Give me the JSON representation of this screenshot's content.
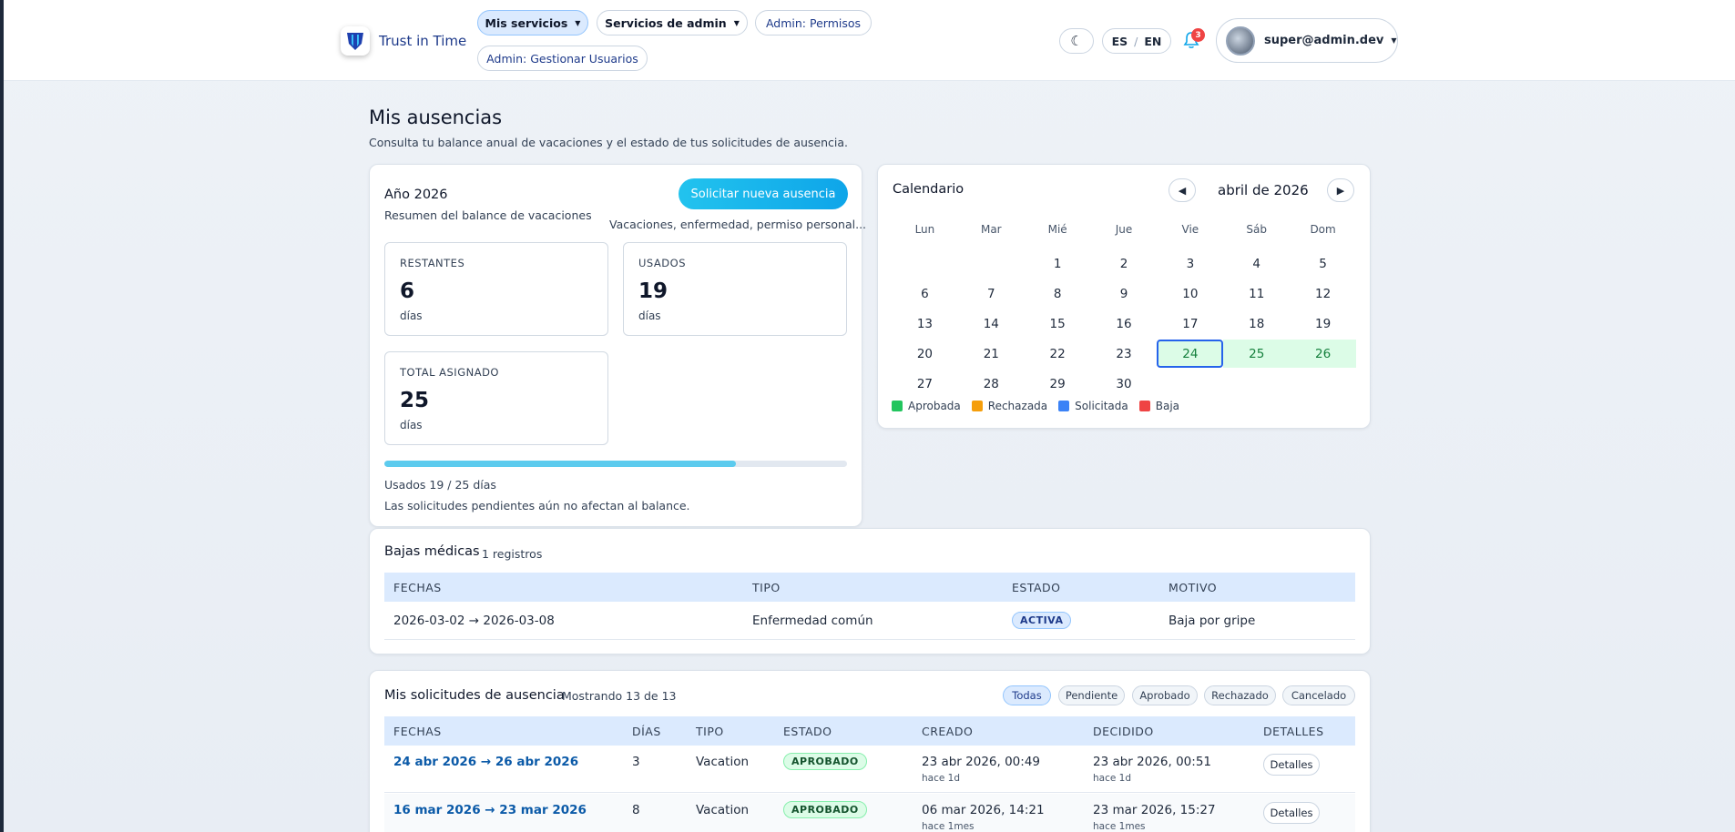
{
  "header": {
    "brand": "Trust in Time",
    "nav": [
      {
        "label": "Mis servicios",
        "active": true,
        "dropdown": true
      },
      {
        "label": "Servicios de admin",
        "active": false,
        "dropdown": true
      },
      {
        "label": "Admin: Permisos",
        "active": false,
        "dropdown": false
      },
      {
        "label": "Admin: Gestionar Usuarios",
        "active": false,
        "dropdown": false
      }
    ],
    "lang": {
      "es": "ES",
      "sep": "/",
      "en": "EN"
    },
    "notifications": "3",
    "user": "super@admin.dev"
  },
  "page": {
    "title": "Mis ausencias",
    "subtitle": "Consulta tu balance anual de vacaciones y el estado de tus solicitudes de ausencia."
  },
  "balance": {
    "year": "Año 2026",
    "summary": "Resumen del balance de vacaciones",
    "request_button": "Solicitar nueva ausencia",
    "request_hint": "Vacaciones, enfermedad, permiso personal...",
    "stats": [
      {
        "label": "RESTANTES",
        "value": "6",
        "unit": "días"
      },
      {
        "label": "USADOS",
        "value": "19",
        "unit": "días"
      },
      {
        "label": "TOTAL ASIGNADO",
        "value": "25",
        "unit": "días"
      }
    ],
    "progress": 0.76,
    "usage_text": "Usados 19 / 25 días",
    "note": "Las solicitudes pendientes aún no afectan al balance."
  },
  "calendar": {
    "title": "Calendario",
    "month": "abril de 2026",
    "weekdays": [
      "Lun",
      "Mar",
      "Mié",
      "Jue",
      "Vie",
      "Sáb",
      "Dom"
    ],
    "weeks": [
      [
        "",
        "",
        "1",
        "2",
        "3",
        "4",
        "5"
      ],
      [
        "6",
        "7",
        "8",
        "9",
        "10",
        "11",
        "12"
      ],
      [
        "13",
        "14",
        "15",
        "16",
        "17",
        "18",
        "19"
      ],
      [
        "20",
        "21",
        "22",
        "23",
        "24",
        "25",
        "26"
      ],
      [
        "27",
        "28",
        "29",
        "30",
        "",
        "",
        ""
      ]
    ],
    "approved_days": [
      "24",
      "25",
      "26"
    ],
    "today": "24",
    "legend": [
      {
        "label": "Aprobada",
        "color": "#22c55e"
      },
      {
        "label": "Rechazada",
        "color": "#f59e0b"
      },
      {
        "label": "Solicitada",
        "color": "#3b82f6"
      },
      {
        "label": "Baja",
        "color": "#ef4444"
      }
    ]
  },
  "medical": {
    "title": "Bajas médicas",
    "count": "1 registros",
    "headers": [
      "FECHAS",
      "TIPO",
      "ESTADO",
      "MOTIVO"
    ],
    "rows": [
      {
        "dates": "2026-03-02 → 2026-03-08",
        "type": "Enfermedad común",
        "status": "ACTIVA",
        "reason": "Baja por gripe"
      }
    ]
  },
  "requests": {
    "title": "Mis solicitudes de ausencia",
    "count": "Mostrando 13 de 13",
    "filters": [
      "Todas",
      "Pendiente",
      "Aprobado",
      "Rechazado",
      "Cancelado"
    ],
    "headers": [
      "FECHAS",
      "DÍAS",
      "TIPO",
      "ESTADO",
      "CREADO",
      "DECIDIDO",
      "DETALLES"
    ],
    "detail_label": "Detalles",
    "rows": [
      {
        "dates": "24 abr 2026 → 26 abr 2026",
        "days": "3",
        "type": "Vacation",
        "status": "APROBADO",
        "created": "23 abr 2026, 00:49",
        "created_ago": "hace 1d",
        "decided": "23 abr 2026, 00:51",
        "decided_ago": "hace 1d"
      },
      {
        "dates": "16 mar 2026 → 23 mar 2026",
        "days": "8",
        "type": "Vacation",
        "status": "APROBADO",
        "created": "06 mar 2026, 14:21",
        "created_ago": "hace 1mes",
        "decided": "23 mar 2026, 15:27",
        "decided_ago": "hace 1mes"
      }
    ]
  }
}
